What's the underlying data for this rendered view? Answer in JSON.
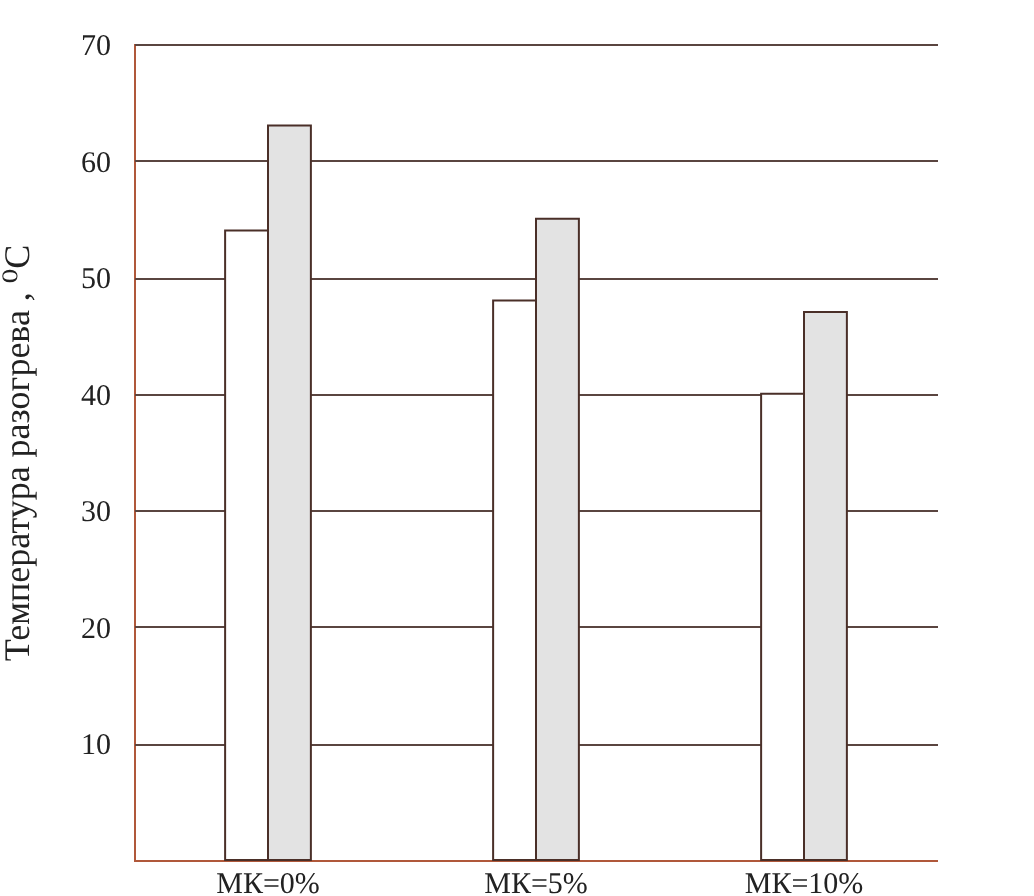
{
  "chart_data": {
    "type": "bar",
    "ylabel": "Температура разогрева , ⁰C",
    "categories": [
      "МК=0%",
      "МК=5%",
      "МК=10%"
    ],
    "series": [
      {
        "color": "#ffffff",
        "values": [
          54,
          48,
          40
        ]
      },
      {
        "color": "#e3e3e3",
        "values": [
          63,
          55,
          47
        ]
      }
    ],
    "ylim": [
      0,
      70
    ],
    "yticks": [
      10,
      20,
      30,
      40,
      50,
      60,
      70
    ],
    "grid": "y",
    "legend": false
  }
}
